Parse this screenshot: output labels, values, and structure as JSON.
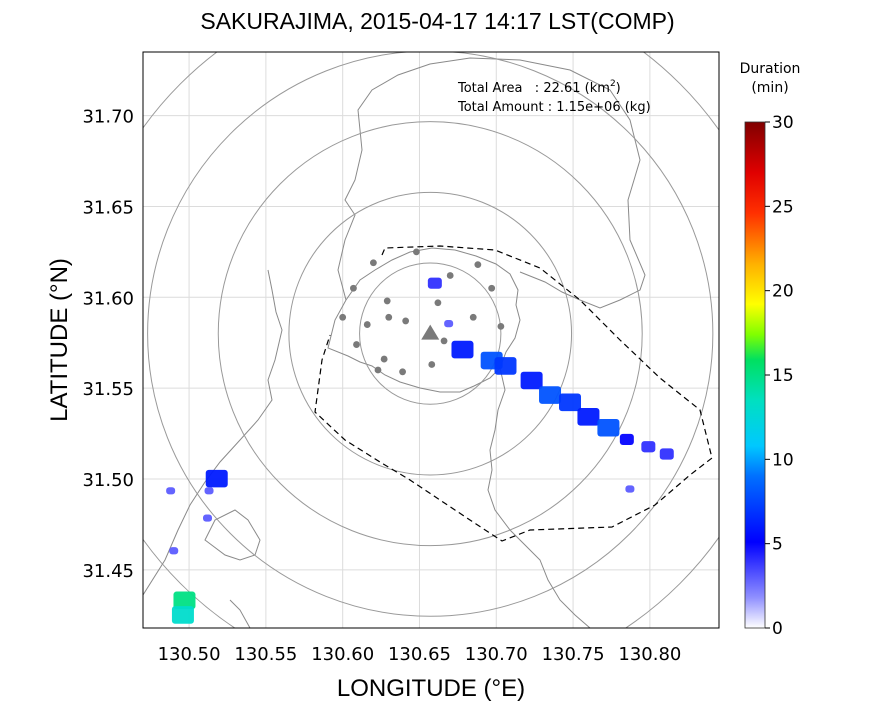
{
  "title": "SAKURAJIMA, 2015-04-17 14:17 LST(COMP)",
  "xlabel": "LONGITUDE (°E)",
  "ylabel": "LATITUDE (°N)",
  "stats": {
    "area_label": "Total Area   : 22.61 (km",
    "area_sup": "2",
    "area_close": ")",
    "amount": "Total Amount : 1.15e+06 (kg)"
  },
  "colorbar": {
    "title_line1": "Duration",
    "title_line2": "(min)",
    "ticks": [
      "0",
      "5",
      "10",
      "15",
      "20",
      "25",
      "30"
    ],
    "min": 0,
    "max": 30,
    "colors": [
      "#ffffff",
      "#8080ff",
      "#0000ff",
      "#0050ff",
      "#00aaff",
      "#00e0e0",
      "#00e080",
      "#80ff00",
      "#ffff00",
      "#ffb000",
      "#ff4000",
      "#e00000",
      "#800000"
    ]
  },
  "chart_data": {
    "type": "heatmap",
    "xlim": [
      130.47,
      130.845
    ],
    "ylim": [
      31.418,
      31.735
    ],
    "x_ticks": [
      "130.50",
      "130.55",
      "130.60",
      "130.65",
      "130.70",
      "130.75",
      "130.80"
    ],
    "y_ticks": [
      "31.45",
      "31.50",
      "31.55",
      "31.60",
      "31.65",
      "31.70"
    ],
    "grid": true,
    "vent": {
      "lon": 130.657,
      "lat": 31.58
    },
    "range_rings_center": {
      "lon": 130.657,
      "lat": 31.58
    },
    "stations": [
      [
        130.62,
        31.619
      ],
      [
        130.648,
        31.625
      ],
      [
        130.688,
        31.618
      ],
      [
        130.607,
        31.605
      ],
      [
        130.629,
        31.598
      ],
      [
        130.67,
        31.612
      ],
      [
        130.697,
        31.605
      ],
      [
        130.63,
        31.589
      ],
      [
        130.662,
        31.597
      ],
      [
        130.6,
        31.589
      ],
      [
        130.616,
        31.585
      ],
      [
        130.641,
        31.587
      ],
      [
        130.685,
        31.589
      ],
      [
        130.703,
        31.584
      ],
      [
        130.609,
        31.574
      ],
      [
        130.627,
        31.566
      ],
      [
        130.666,
        31.576
      ],
      [
        130.623,
        31.56
      ],
      [
        130.639,
        31.559
      ],
      [
        130.658,
        31.563
      ]
    ],
    "plume": [
      {
        "lon": 130.66,
        "lat": 31.607,
        "minutes": 4
      },
      {
        "lon": 130.669,
        "lat": 31.585,
        "minutes": 3
      },
      {
        "lon": 130.678,
        "lat": 31.57,
        "minutes": 6
      },
      {
        "lon": 130.697,
        "lat": 31.564,
        "minutes": 8
      },
      {
        "lon": 130.706,
        "lat": 31.561,
        "minutes": 7
      },
      {
        "lon": 130.723,
        "lat": 31.553,
        "minutes": 6
      },
      {
        "lon": 130.735,
        "lat": 31.545,
        "minutes": 8
      },
      {
        "lon": 130.748,
        "lat": 31.541,
        "minutes": 7
      },
      {
        "lon": 130.76,
        "lat": 31.533,
        "minutes": 6
      },
      {
        "lon": 130.773,
        "lat": 31.527,
        "minutes": 8
      },
      {
        "lon": 130.785,
        "lat": 31.521,
        "minutes": 5
      },
      {
        "lon": 130.799,
        "lat": 31.517,
        "minutes": 4
      },
      {
        "lon": 130.811,
        "lat": 31.513,
        "minutes": 4
      },
      {
        "lon": 130.787,
        "lat": 31.494,
        "minutes": 3
      },
      {
        "lon": 130.518,
        "lat": 31.499,
        "minutes": 6
      },
      {
        "lon": 130.513,
        "lat": 31.493,
        "minutes": 3
      },
      {
        "lon": 130.512,
        "lat": 31.478,
        "minutes": 3
      },
      {
        "lon": 130.488,
        "lat": 31.493,
        "minutes": 3
      },
      {
        "lon": 130.49,
        "lat": 31.46,
        "minutes": 3
      },
      {
        "lon": 130.497,
        "lat": 31.432,
        "minutes": 15
      },
      {
        "lon": 130.496,
        "lat": 31.424,
        "minutes": 13
      }
    ]
  }
}
